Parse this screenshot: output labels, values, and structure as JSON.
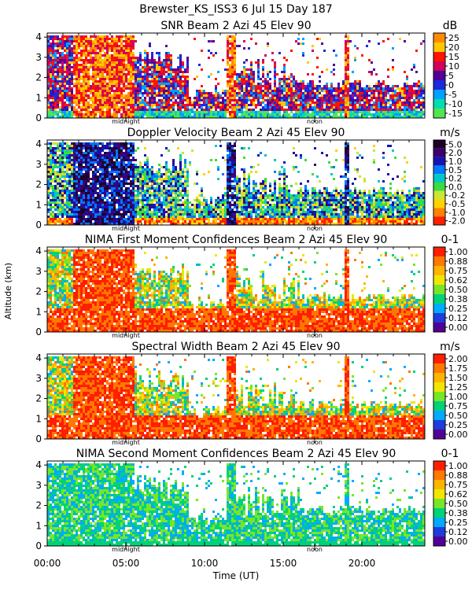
{
  "figure": {
    "title": "Brewster_KS_ISS3    6 Jul 15 Day 187",
    "ylabel": "Altitude (km)",
    "xlabel": "Time (UT)",
    "x_ticks": [
      "00:00",
      "05:00",
      "10:00",
      "15:00",
      "20:00"
    ],
    "marker_midnight": "midnight",
    "marker_noon": "noon"
  },
  "chart_data": [
    {
      "type": "heatmap",
      "title": "SNR Beam 2 Azi  45 Elev 90",
      "unit": "dB",
      "x_range_hours": [
        0,
        24
      ],
      "y_range_km": [
        0,
        4.2
      ],
      "y_ticks": [
        "0",
        "1",
        "2",
        "3",
        "4"
      ],
      "colorbar_labels": [
        "25",
        "20",
        "15",
        "10",
        "5",
        "0",
        "-5",
        "-10",
        "-15"
      ],
      "colorbar_colors": [
        "#ff8c00",
        "#ffc800",
        "#ff1400",
        "#d2005a",
        "#500096",
        "#1e28dc",
        "#00a0ff",
        "#00dcb4",
        "#50e650"
      ]
    },
    {
      "type": "heatmap",
      "title": "Doppler Velocity Beam 2 Azi  45 Elev 90",
      "unit": "m/s",
      "x_range_hours": [
        0,
        24
      ],
      "y_range_km": [
        0,
        4.2
      ],
      "y_ticks": [
        "0",
        "1",
        "2",
        "3",
        "4"
      ],
      "colorbar_labels": [
        "5.0",
        "2.0",
        "1.0",
        "0.5",
        "0.2",
        "0.0",
        "-0.2",
        "-0.5",
        "-1.0",
        "-2.0"
      ],
      "colorbar_colors": [
        "#1e0028",
        "#3c006e",
        "#1414b4",
        "#0078ff",
        "#00c8c8",
        "#3cdc3c",
        "#c8e632",
        "#ffd200",
        "#ff8200",
        "#ff1e00"
      ]
    },
    {
      "type": "heatmap",
      "title": "NIMA First Moment Confidences Beam 2 Azi  45 Elev 90",
      "unit": "0-1",
      "x_range_hours": [
        0,
        24
      ],
      "y_range_km": [
        0,
        4.2
      ],
      "y_ticks": [
        "0",
        "1",
        "2",
        "3",
        "4"
      ],
      "colorbar_labels": [
        "1.00",
        "0.88",
        "0.75",
        "0.62",
        "0.50",
        "0.38",
        "0.25",
        "0.12",
        "0.00"
      ],
      "colorbar_colors": [
        "#ff1e00",
        "#ff7800",
        "#ffb400",
        "#f0e600",
        "#78e628",
        "#00d278",
        "#00aaff",
        "#1e3cdc",
        "#500096"
      ]
    },
    {
      "type": "heatmap",
      "title": "Spectral Width Beam 2 Azi  45 Elev 90",
      "unit": "m/s",
      "x_range_hours": [
        0,
        24
      ],
      "y_range_km": [
        0,
        4.2
      ],
      "y_ticks": [
        "0",
        "1",
        "2",
        "3",
        "4"
      ],
      "colorbar_labels": [
        "2.00",
        "1.75",
        "1.50",
        "1.25",
        "1.00",
        "0.75",
        "0.50",
        "0.25",
        "0.00"
      ],
      "colorbar_colors": [
        "#ff1e00",
        "#ff7800",
        "#ffb400",
        "#f0e600",
        "#78e628",
        "#00d278",
        "#00aaff",
        "#1e3cdc",
        "#500096"
      ]
    },
    {
      "type": "heatmap",
      "title": "NIMA Second Moment Confidences Beam 2 Azi  45 Elev 90",
      "unit": "0-1",
      "x_range_hours": [
        0,
        24
      ],
      "y_range_km": [
        0,
        4.2
      ],
      "y_ticks": [
        "0",
        "1",
        "2",
        "3",
        "4"
      ],
      "colorbar_labels": [
        "1.00",
        "0.88",
        "0.75",
        "0.62",
        "0.50",
        "0.38",
        "0.25",
        "0.12",
        "0.00"
      ],
      "colorbar_colors": [
        "#ff1e00",
        "#ff7800",
        "#ffb400",
        "#f0e600",
        "#78e628",
        "#00d278",
        "#00aaff",
        "#1e3cdc",
        "#500096"
      ]
    }
  ]
}
